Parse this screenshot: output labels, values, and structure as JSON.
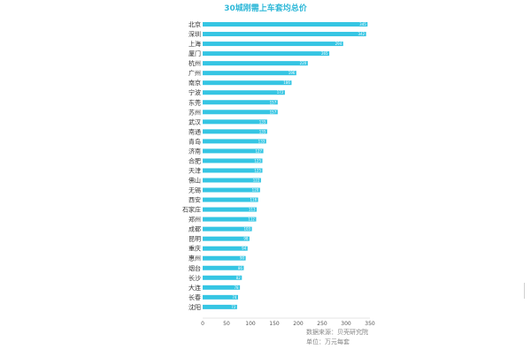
{
  "chart_data": {
    "type": "bar",
    "orientation": "horizontal",
    "title": "30城刚需上车套均总价",
    "source": "数据来源：贝壳研究院",
    "unit_note": "单位：万元每套",
    "color": "#35c5e3",
    "title_color": "#2fb8d8",
    "xlim": [
      0,
      350
    ],
    "xticks": [
      "0",
      "50",
      "100",
      "150",
      "200",
      "250",
      "300",
      "350"
    ],
    "grid": false,
    "categories": [
      "北京",
      "深圳",
      "上海",
      "厦门",
      "杭州",
      "广州",
      "南京",
      "宁波",
      "东莞",
      "苏州",
      "武汉",
      "南通",
      "青岛",
      "济南",
      "合肥",
      "天津",
      "佛山",
      "无锡",
      "西安",
      "石家庄",
      "郑州",
      "成都",
      "昆明",
      "重庆",
      "惠州",
      "烟台",
      "长沙",
      "大连",
      "长春",
      "沈阳"
    ],
    "values": [
      345,
      342,
      294,
      265,
      220,
      196,
      186,
      172,
      157,
      157,
      135,
      135,
      133,
      127,
      125,
      125,
      122,
      120,
      116,
      113,
      112,
      103,
      98,
      94,
      90,
      86,
      82,
      78,
      74,
      72
    ]
  }
}
